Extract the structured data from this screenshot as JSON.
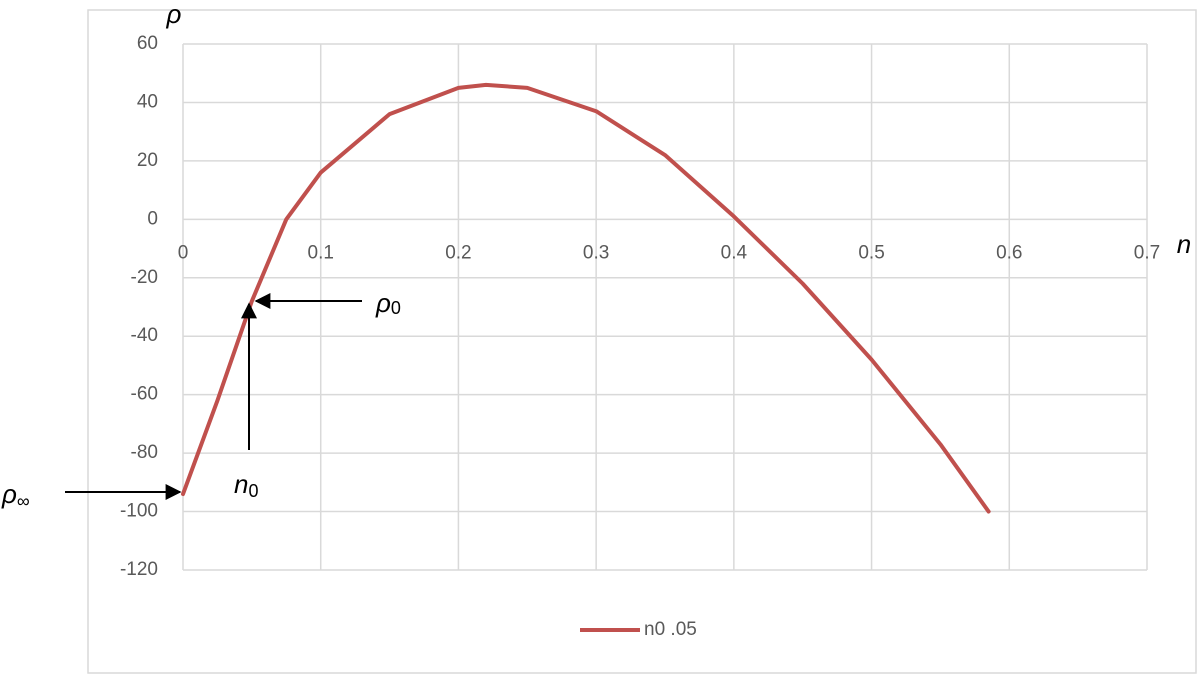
{
  "chart_data": {
    "type": "line",
    "x_axis_label": "n",
    "y_axis_label": "ρ",
    "x": [
      0,
      0.025,
      0.05,
      0.075,
      0.1,
      0.15,
      0.2,
      0.22,
      0.25,
      0.3,
      0.35,
      0.4,
      0.45,
      0.5,
      0.55,
      0.585
    ],
    "series": [
      {
        "name": "n0 .05",
        "color": "#c0504d",
        "values": [
          -94,
          -62,
          -28,
          0,
          16,
          36,
          45,
          46,
          45,
          37,
          22,
          1,
          -22,
          -48,
          -77,
          -100
        ]
      }
    ],
    "xlim": [
      0,
      0.7
    ],
    "xticks": [
      0,
      0.1,
      0.2,
      0.3,
      0.4,
      0.5,
      0.6,
      0.7
    ],
    "ylim": [
      -120,
      60
    ],
    "yticks": [
      -120,
      -100,
      -80,
      -60,
      -40,
      -20,
      0,
      20,
      40,
      60
    ],
    "grid": true,
    "legend": "bottom",
    "annotations": [
      {
        "base": "ρ",
        "sub": "0"
      },
      {
        "base": "n",
        "sub": "0"
      },
      {
        "base": "ρ",
        "sub": "∞"
      }
    ]
  }
}
